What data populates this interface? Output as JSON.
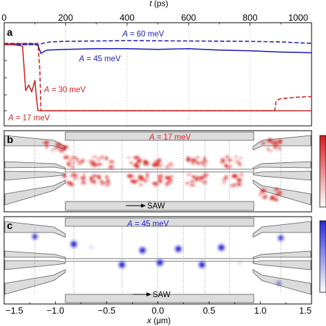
{
  "panel_a": {
    "letter": "a",
    "top_axis": {
      "label_italic": "t",
      "label_unit": " (ps)",
      "range": [
        0,
        1000
      ],
      "ticks": [
        "0",
        "200",
        "400",
        "600",
        "800",
        "1000"
      ]
    },
    "annotations": [
      {
        "name": "A",
        "value": " = 60 meV",
        "color": "#2020b0"
      },
      {
        "name": "A",
        "value": " = 45 meV",
        "color": "#2020b0"
      },
      {
        "name": "A",
        "value": " = 30 meV",
        "color": "#cc2020"
      },
      {
        "name": "A",
        "value": " = 17 meV",
        "color": "#cc2020"
      }
    ]
  },
  "panel_b": {
    "letter": "b",
    "label_name": "A",
    "label_value": " = 17 meV",
    "color": "#dd2020",
    "saw_label": "SAW"
  },
  "panel_c": {
    "letter": "c",
    "label_name": "A",
    "label_value": " = 45 meV",
    "color": "#2020cc",
    "saw_label": "SAW"
  },
  "bottom_axis": {
    "label_italic": "x",
    "label_unit": " (μm)",
    "range": [
      -1.5,
      1.5
    ],
    "ticks": [
      "−1.5",
      "−1.0",
      "−0.5",
      "0.0",
      "0.5",
      "1.0",
      "1.5"
    ]
  },
  "chart_data": {
    "type": "line",
    "x_range": [
      0,
      1000
    ],
    "series": [
      {
        "color": "#2020b0",
        "style": "dashed",
        "x": [
          0,
          50,
          100,
          110,
          125,
          150,
          200,
          400,
          600,
          800,
          900,
          1000
        ],
        "y": [
          0.98,
          0.98,
          0.98,
          0.97,
          1.0,
          1.02,
          1.03,
          1.04,
          1.035,
          1.03,
          1.02,
          1.0
        ]
      },
      {
        "color": "#2020b0",
        "style": "solid",
        "x": [
          0,
          50,
          100,
          110,
          120,
          130,
          140,
          200,
          300,
          400,
          500,
          600,
          700,
          800,
          900,
          1000
        ],
        "y": [
          0.99,
          0.99,
          0.99,
          0.97,
          0.85,
          0.88,
          0.9,
          0.91,
          0.92,
          0.92,
          0.91,
          0.92,
          0.9,
          0.89,
          0.87,
          0.86
        ]
      },
      {
        "color": "#cc2020",
        "style": "dashed",
        "x": [
          0,
          50,
          110,
          116,
          120,
          880,
          885,
          900,
          950,
          1000
        ],
        "y": [
          1.0,
          1.0,
          1.0,
          0.6,
          0.0,
          0.0,
          0.15,
          0.18,
          0.2,
          0.21
        ]
      },
      {
        "color": "#cc2020",
        "style": "solid",
        "x": [
          0,
          30,
          60,
          70,
          80,
          90,
          100,
          105,
          110,
          115,
          200,
          400,
          600,
          800,
          1000
        ],
        "y": [
          0.98,
          0.98,
          0.96,
          0.3,
          0.38,
          0.28,
          0.45,
          0.2,
          0.0,
          0.0,
          0.0,
          0.0,
          0.0,
          0.0,
          0.0
        ]
      }
    ]
  }
}
